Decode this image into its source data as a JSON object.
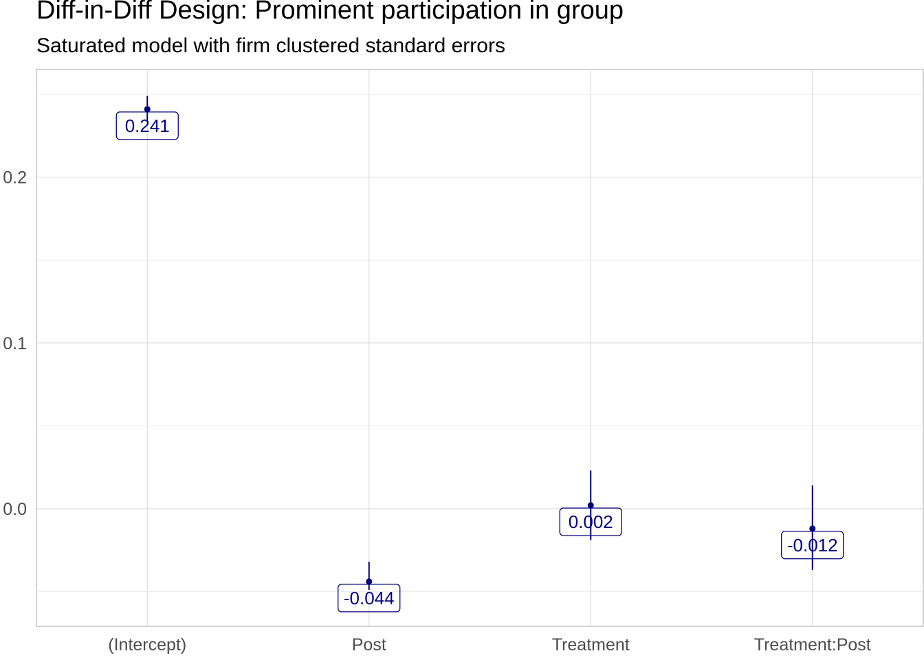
{
  "chart_data": {
    "type": "scatter",
    "title": "Diff-in-Diff Design: Prominent participation in group",
    "subtitle": "Saturated model with firm clustered standard errors",
    "xlabel": "",
    "ylabel": "",
    "categories": [
      "(Intercept)",
      "Post",
      "Treatment",
      "Treatment:Post"
    ],
    "estimates": [
      0.241,
      -0.044,
      0.002,
      -0.012
    ],
    "labels": [
      "0.241",
      "-0.044",
      "0.002",
      "-0.012"
    ],
    "ci_low": [
      0.233,
      -0.049,
      -0.019,
      -0.037
    ],
    "ci_high": [
      0.249,
      -0.032,
      0.023,
      0.014
    ],
    "yticks": [
      0.0,
      0.1,
      0.2
    ],
    "ytick_labels": [
      "0.0",
      "0.1",
      "0.2"
    ],
    "ylim": [
      -0.071,
      0.265
    ],
    "grid": true,
    "color": "#00007f"
  }
}
